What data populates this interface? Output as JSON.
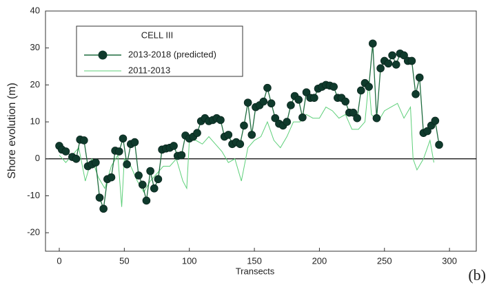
{
  "chart_data": {
    "type": "line",
    "x_label": "Transects",
    "y_label": "Shore evolution (m)",
    "panel_label": "(b)",
    "legend_title": "CELL III",
    "xlim": [
      -10.6,
      320.6
    ],
    "ylim": [
      -25,
      40
    ],
    "xticks": [
      0,
      50,
      100,
      150,
      200,
      250,
      300
    ],
    "yticks": [
      -20,
      -10,
      0,
      10,
      20,
      30,
      40
    ],
    "zero_line": true,
    "series": [
      {
        "name": "2013-2018 (predicted)",
        "color": "#1d6b3d",
        "marker_color": "#0f3a2c",
        "marker": true,
        "x": [
          0,
          2,
          5,
          10,
          13,
          16,
          19,
          22,
          25,
          28,
          31,
          34,
          37,
          40,
          43,
          46,
          49,
          52,
          55,
          58,
          61,
          64,
          67,
          70,
          73,
          76,
          79,
          82,
          85,
          88,
          91,
          94,
          97,
          100,
          103,
          106,
          109,
          112,
          115,
          118,
          121,
          124,
          127,
          130,
          133,
          136,
          139,
          142,
          145,
          148,
          151,
          154,
          157,
          160,
          163,
          166,
          169,
          172,
          175,
          178,
          181,
          184,
          187,
          190,
          193,
          196,
          199,
          202,
          205,
          208,
          211,
          214,
          217,
          220,
          223,
          226,
          229,
          232,
          235,
          238,
          241,
          244,
          247,
          250,
          253,
          256,
          259,
          262,
          265,
          268,
          271,
          274,
          277,
          280,
          283,
          286,
          289,
          292
        ],
        "values": [
          3.5,
          2.5,
          2,
          0.5,
          0,
          5.2,
          5,
          -2,
          -1.5,
          -1,
          -10.5,
          -13.5,
          -5.5,
          -5,
          2.2,
          2,
          5.5,
          -1.5,
          4,
          4.5,
          -4.5,
          -7,
          -11.3,
          -3.3,
          -8,
          -5.5,
          2.5,
          2.8,
          3,
          3.5,
          0.8,
          1,
          6.3,
          5.5,
          6,
          7,
          10.2,
          11,
          10.2,
          10.5,
          11,
          10.5,
          6,
          6.5,
          4,
          4.5,
          4,
          9,
          15.2,
          6.5,
          14,
          14.5,
          15.5,
          19.2,
          15,
          11,
          9.5,
          9,
          10,
          14.5,
          17,
          16,
          11.2,
          18,
          16.5,
          16.5,
          19,
          19.5,
          20,
          19.8,
          19.5,
          16.5,
          16.5,
          15.5,
          12.5,
          12.5,
          11,
          18.5,
          20.5,
          19.5,
          31.2,
          11,
          24.5,
          26.5,
          25.8,
          28,
          25.5,
          28.5,
          28,
          26.5,
          26.5,
          17.5,
          22,
          7,
          7.5,
          9,
          10.3,
          3.8
        ]
      },
      {
        "name": "2011-2013",
        "color": "#5ccf78",
        "marker": false,
        "x": [
          0,
          5,
          10,
          15,
          20,
          25,
          30,
          35,
          40,
          45,
          48,
          50,
          55,
          60,
          65,
          70,
          75,
          80,
          85,
          90,
          95,
          98,
          100,
          105,
          110,
          115,
          120,
          125,
          130,
          135,
          140,
          145,
          150,
          155,
          160,
          165,
          170,
          175,
          180,
          185,
          190,
          195,
          200,
          205,
          210,
          215,
          220,
          225,
          230,
          235,
          238,
          240,
          245,
          250,
          255,
          260,
          265,
          270,
          272,
          275,
          280,
          285,
          288
        ],
        "values": [
          1,
          -1,
          1,
          3,
          -6,
          0,
          -5,
          -8,
          -2,
          1,
          -13,
          0,
          -2,
          -6,
          -9,
          -6,
          -4,
          -2,
          -2,
          0,
          -6,
          -8,
          5,
          5,
          4,
          6,
          4,
          2,
          -1,
          0,
          -6,
          3,
          5,
          6,
          10,
          5,
          3,
          6,
          10,
          10,
          12,
          11,
          11,
          14,
          13,
          11,
          12,
          8,
          8,
          10,
          21,
          12,
          10,
          13,
          14,
          15,
          11,
          14,
          0,
          -3,
          0,
          5,
          -1
        ]
      }
    ]
  }
}
